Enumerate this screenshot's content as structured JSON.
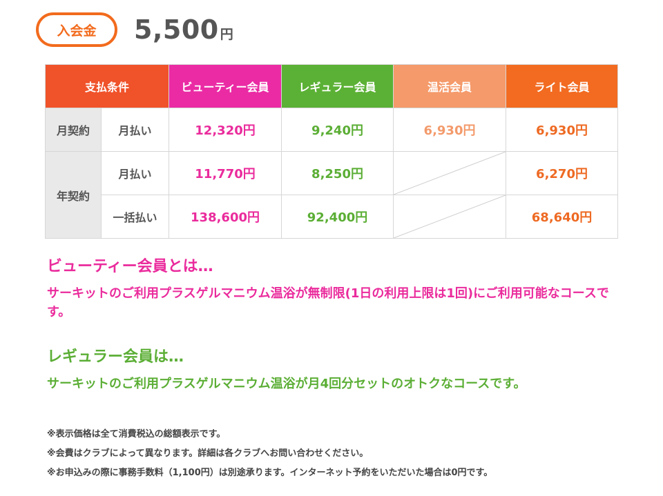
{
  "entrance": {
    "badge_label": "入会金",
    "amount": "5,500",
    "unit": "円"
  },
  "table": {
    "headers": {
      "condition": "支払条件",
      "beauty": "ビューティー会員",
      "regular": "レギュラー会員",
      "onkatsu": "温活会員",
      "light": "ライト会員"
    },
    "monthly_contract": {
      "label": "月契約",
      "sub_label": "月払い",
      "beauty": "12,320円",
      "regular": "9,240円",
      "onkatsu": "6,930円",
      "light": "6,930円"
    },
    "annual_contract": {
      "label": "年契約",
      "monthly": {
        "sub_label": "月払い",
        "beauty": "11,770円",
        "regular": "8,250円",
        "light": "6,270円"
      },
      "lump": {
        "sub_label": "一括払い",
        "beauty": "138,600円",
        "regular": "92,400円",
        "light": "68,640円"
      }
    },
    "colors": {
      "condition": "#f0522a",
      "beauty": "#ea2ba4",
      "regular": "#5bb135",
      "onkatsu": "#f59a6a",
      "light": "#f26b21"
    }
  },
  "descriptions": {
    "beauty": {
      "title": "ビューティー会員とは…",
      "text": "サーキットのご利用プラスゲルマニウム温浴が無制限(1日の利用上限は1回)にご利用可能なコースです。"
    },
    "regular": {
      "title": "レギュラー会員は…",
      "text": "サーキットのご利用プラスゲルマニウム温浴が月4回分セットのオトクなコースです。"
    }
  },
  "notes": [
    "※表示価格は全て消費税込の総額表示です。",
    "※会費はクラブによって異なります。詳細は各クラブへお問い合わせください。",
    "※お申込みの際に事務手数料（1,100円）は別途承ります。インターネット予約をいただいた場合は0円です。"
  ]
}
